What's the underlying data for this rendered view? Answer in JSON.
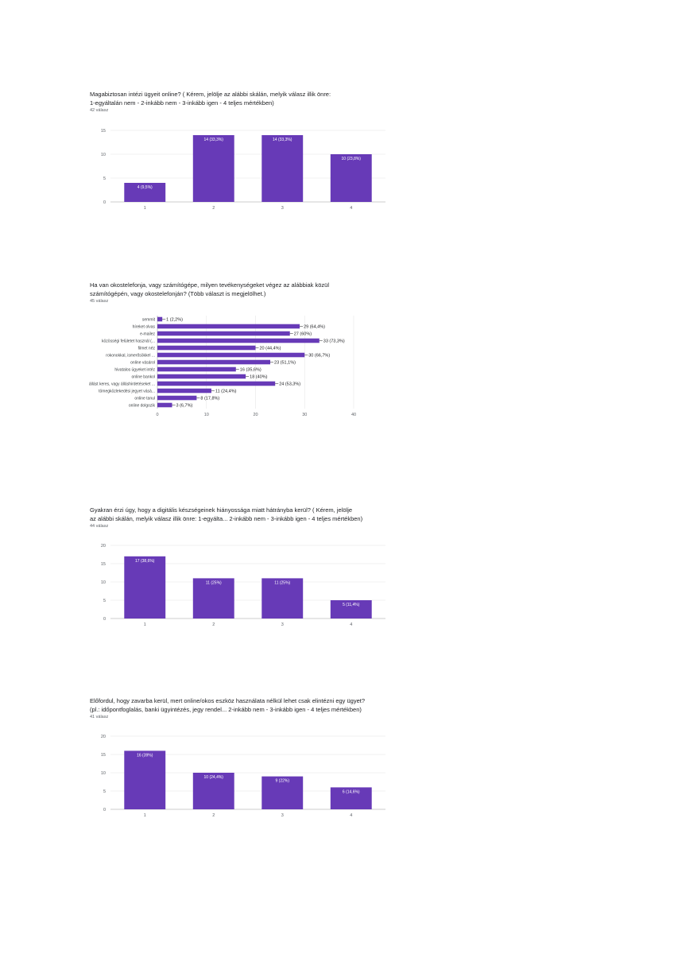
{
  "colors": {
    "bar": "#673ab7",
    "grid": "#e6e6e6",
    "text": "#202124"
  },
  "questions": [
    {
      "title_line1": "Magabiztosan intézi ügyeit online?  ( Kérem, jelölje az alábbi skálán, melyik válasz illik önre:",
      "title_line2": "1-egyáltalán nem - 2-inkább nem - 3-inkább igen - 4 teljes mértékben)",
      "count": "42 válasz"
    },
    {
      "title_line1": "Ha van okostelefonja, vagy számítógépe, milyen tevékenységeket végez az alábbiak közül",
      "title_line2": "számítógépén, vagy okostelefonján?  (Több választ is megjelölhet.)",
      "count": "45 válasz"
    },
    {
      "title_line1": "Gyakran érzi úgy, hogy a digitális készségeinek hiányossága miatt hátrányba kerül?  ( Kérem, jelölje",
      "title_line2": "az alábbi skálán, melyik válasz illik önre: 1-egyálta... 2-inkább nem - 3-inkább igen - 4 teljes mértékben)",
      "count": "44 válasz"
    },
    {
      "title_line1": "Előfordul, hogy zavarba kerül, mert online/okos eszköz használata nélkül lehet csak elintézni egy ügyet?",
      "title_line2": "(pl.: időpontfoglalás, banki ügyintézés, jegy rendel... 2-inkább nem - 3-inkább igen - 4 teljes mértékben)",
      "count": "41 válasz"
    }
  ],
  "chart_data": [
    {
      "type": "bar",
      "categories": [
        "1",
        "2",
        "3",
        "4"
      ],
      "values": [
        4,
        14,
        14,
        10
      ],
      "labels": [
        "4 (9,5%)",
        "14 (33,3%)",
        "14 (33,3%)",
        "10 (23,8%)"
      ],
      "yticks": [
        "0",
        "5",
        "10",
        "15"
      ],
      "ylim": [
        0,
        15
      ]
    },
    {
      "type": "bar",
      "orientation": "horizontal",
      "categories": [
        "semmit",
        "híreket olvas",
        "e-mailez",
        "közösségi felületet használ (...",
        "filmet néz",
        "rokonokkal, ismerősökkel ...",
        "online vásárol",
        "hivatalos ügyeket intéz",
        "online bankol",
        "állást keres, vagy álláshirdetéseket ...",
        "tömegközlekedési jegyet vásá...",
        "online tanul",
        "online dolgozik"
      ],
      "values": [
        1,
        29,
        27,
        33,
        20,
        30,
        23,
        16,
        18,
        24,
        11,
        8,
        3
      ],
      "labels": [
        "1 (2,2%)",
        "29 (64,4%)",
        "27 (60%)",
        "33 (73,3%)",
        "20 (44,4%)",
        "30 (66,7%)",
        "23 (51,1%)",
        "16 (35,6%)",
        "18 (40%)",
        "24 (53,3%)",
        "11 (24,4%)",
        "8 (17,8%)",
        "3 (6,7%)"
      ],
      "xticks": [
        "0",
        "10",
        "20",
        "30",
        "40"
      ],
      "xlim": [
        0,
        40
      ]
    },
    {
      "type": "bar",
      "categories": [
        "1",
        "2",
        "3",
        "4"
      ],
      "values": [
        17,
        11,
        11,
        5
      ],
      "labels": [
        "17 (38,6%)",
        "11 (25%)",
        "11 (25%)",
        "5 (11,4%)"
      ],
      "yticks": [
        "0",
        "5",
        "10",
        "15",
        "20"
      ],
      "ylim": [
        0,
        20
      ]
    },
    {
      "type": "bar",
      "categories": [
        "1",
        "2",
        "3",
        "4"
      ],
      "values": [
        16,
        10,
        9,
        6
      ],
      "labels": [
        "16 (39%)",
        "10 (24,4%)",
        "9 (22%)",
        "6 (14,6%)"
      ],
      "yticks": [
        "0",
        "5",
        "10",
        "15",
        "20"
      ],
      "ylim": [
        0,
        20
      ]
    }
  ]
}
